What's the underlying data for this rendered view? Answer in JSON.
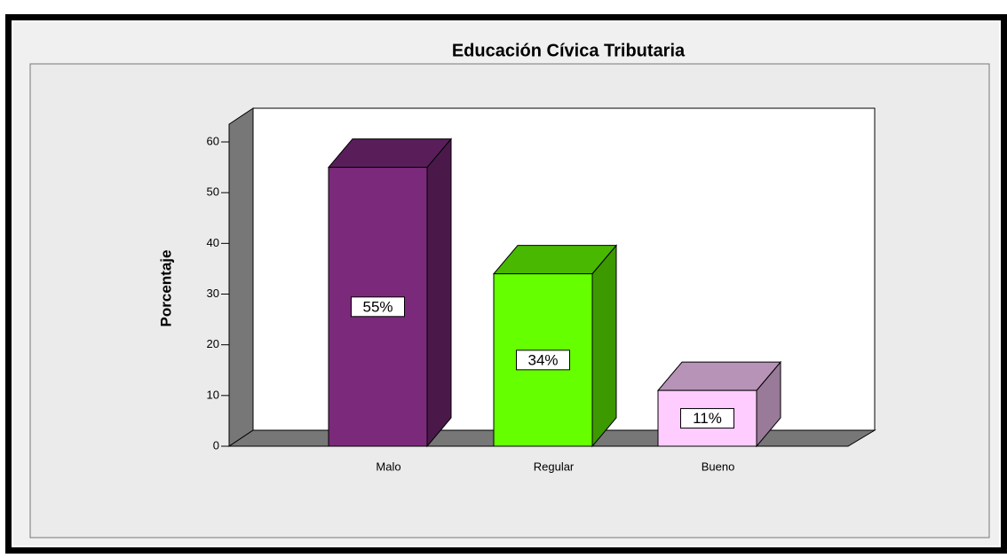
{
  "chart_data": {
    "type": "bar3d",
    "title": "Educación Cívica Tributaria",
    "ylabel": "Porcentaje",
    "categories": [
      "Malo",
      "Regular",
      "Bueno"
    ],
    "values": [
      55,
      34,
      11
    ],
    "value_labels": [
      "55%",
      "34%",
      "11%"
    ],
    "colors": [
      "#7b2a7b",
      "#66ff00",
      "#ffccff"
    ],
    "ylim": [
      0,
      60
    ],
    "yticks": [
      0,
      10,
      20,
      30,
      40,
      50,
      60
    ]
  }
}
